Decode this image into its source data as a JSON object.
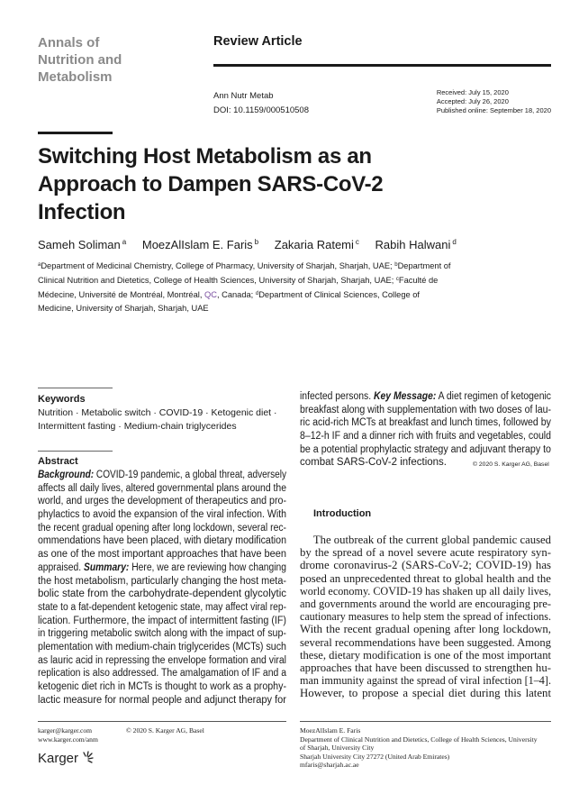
{
  "header": {
    "journal_lines": [
      "Annals of",
      "Nutrition and",
      "Metabolism"
    ],
    "article_type": "Review Article",
    "citation": "Ann Nutr Metab",
    "doi": "DOI: 10.1159/000510508",
    "received": "Received: July 15, 2020",
    "accepted": "Accepted: July 26, 2020",
    "published": "Published online: September 18, 2020"
  },
  "title_lines": [
    "Switching Host Metabolism as an",
    "Approach to Dampen SARS-CoV-2",
    "Infection"
  ],
  "authors": [
    {
      "name": "Sameh Soliman",
      "sup": "a"
    },
    {
      "name": "MoezAlIslam E. Faris",
      "sup": "b"
    },
    {
      "name": "Zakaria Ratemi",
      "sup": "c"
    },
    {
      "name": "Rabih Halwani",
      "sup": "d"
    }
  ],
  "affiliations": {
    "a": "Department of Medicinal Chemistry, College of Pharmacy, University of Sharjah, Sharjah, UAE;",
    "b": "Department of Clinical Nutrition and Dietetics, College of Health Sciences, University of Sharjah, Sharjah, UAE;",
    "c_pre": "Faculté de Médecine, Université de Montréal, Montréal, ",
    "c_qc": "QC",
    "c_post": ", Canada;",
    "d": "Department of Clinical Sciences, College of Medicine, University of Sharjah, Sharjah, UAE"
  },
  "keywords": {
    "heading": "Keywords",
    "lines": [
      "Nutrition · Metabolic switch · COVID-19 · Ketogenic diet ·",
      "Intermittent fasting · Medium-chain triglycerides"
    ]
  },
  "abstract": {
    "heading": "Abstract",
    "lines": [
      {
        "b": "Background:",
        "t": " COVID-19 pandemic, a global threat, adversely"
      },
      "affects all daily lives, altered governmental plans around the",
      "world, and urges the development of therapeutics and pro-",
      "phylactics to avoid the expansion of the viral infection. With",
      "the recent gradual opening after long lockdown, several rec-",
      "ommendations have been placed, with dietary modification",
      "as one of the most important approaches that have been",
      {
        "t": "appraised. ",
        "b": "Summary:",
        "t2": " Here, we are reviewing how changing"
      },
      "the host metabolism, particularly changing the host meta-",
      "bolic state from the carbohydrate-dependent glycolytic",
      "state to a fat-dependent ketogenic state, may affect viral rep-",
      "lication. Furthermore, the impact of intermittent fasting (IF)",
      "in triggering metabolic switch along with the impact of sup-",
      "plementation with medium-chain triglycerides (MCTs) such",
      "as lauric acid in repressing the envelope formation and viral",
      "replication is also addressed. The amalgamation of IF and a",
      "ketogenic diet rich in MCTs is thought to work as a prophy-",
      "lactic measure for normal people and adjunct therapy for"
    ],
    "continued_lines": [
      {
        "t": "infected persons. ",
        "b": "Key Message:",
        "t2": " A diet regimen of ketogenic"
      },
      "breakfast along with supplementation with two doses of lau-",
      "ric acid-rich MCTs at breakfast and lunch times, followed by",
      "8–12-h IF and a dinner rich with fruits and vegetables, could",
      "be a potential prophylactic strategy and adjuvant therapy to",
      "combat SARS-CoV-2 infections."
    ],
    "copyright": "© 2020 S. Karger AG, Basel"
  },
  "introduction": {
    "heading": "Introduction",
    "lines": [
      "The outbreak of the current global pandemic caused",
      "by the spread of a novel severe acute respiratory syn-",
      "drome coronavirus-2 (SARS-CoV-2; COVID-19) has",
      "posed an unprecedented threat to global health and the",
      "world economy. COVID-19 has shaken up all daily lives,",
      "and governments around the world are encouraging pre-",
      "cautionary measures to help stem the spread of infections.",
      "With the recent gradual opening after long lockdown,",
      "several recommendations have been suggested. Among",
      "these, dietary modification is one of the most important",
      "approaches that have been discussed to strengthen hu-",
      "man immunity against the spread of viral infection [1–4].",
      "However, to propose a special diet during this latent"
    ]
  },
  "footer": {
    "email": "karger@karger.com",
    "website": "www.karger.com/anm",
    "copyright": "© 2020 S. Karger AG, Basel",
    "publisher_logo": "Karger",
    "correspondence": [
      "MoezAlIslam E. Faris",
      "Department of Clinical Nutrition and Dietetics, College of Health Sciences, University",
      "of Sharjah, University City",
      "Sharjah University City 27272 (United Arab Emirates)",
      "mfaris@sharjah.ac.ae"
    ]
  }
}
